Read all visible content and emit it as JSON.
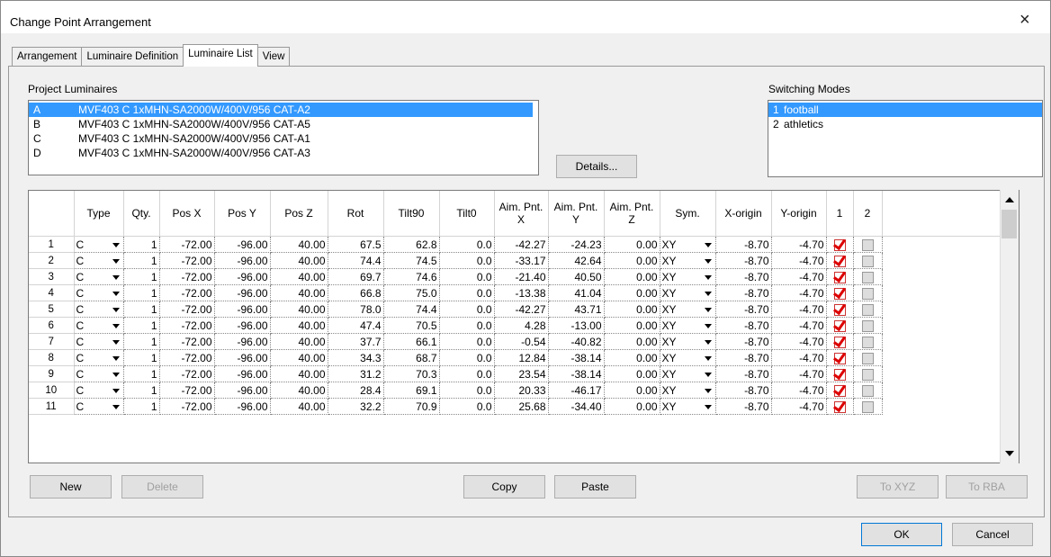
{
  "dialog": {
    "title": "Change Point Arrangement",
    "close": "×"
  },
  "tabs": {
    "items": [
      "Arrangement",
      "Luminaire Definition",
      "Luminaire List",
      "View"
    ],
    "active": 2
  },
  "project_luminaires": {
    "label": "Project Luminaires",
    "selected": 0,
    "items": [
      {
        "id": "A",
        "name": "MVF403 C 1xMHN-SA2000W/400V/956 CAT-A2"
      },
      {
        "id": "B",
        "name": "MVF403 C 1xMHN-SA2000W/400V/956 CAT-A5"
      },
      {
        "id": "C",
        "name": "MVF403 C 1xMHN-SA2000W/400V/956 CAT-A1"
      },
      {
        "id": "D",
        "name": "MVF403 C 1xMHN-SA2000W/400V/956 CAT-A3"
      }
    ]
  },
  "switching_modes": {
    "label": "Switching Modes",
    "selected": 0,
    "items": [
      {
        "id": "1",
        "name": "football"
      },
      {
        "id": "2",
        "name": "athletics"
      }
    ]
  },
  "details_button": "Details...",
  "table": {
    "headers": [
      "Type",
      "Qty.",
      "Pos X",
      "Pos Y",
      "Pos Z",
      "Rot",
      "Tilt90",
      "Tilt0",
      "Aim. Pnt. X",
      "Aim. Pnt. Y",
      "Aim. Pnt. Z",
      "Sym.",
      "X-origin",
      "Y-origin",
      "1",
      "2"
    ],
    "rows": [
      [
        "1",
        "C",
        "1",
        "-72.00",
        "-96.00",
        "40.00",
        "67.5",
        "62.8",
        "0.0",
        "-42.27",
        "-24.23",
        "0.00",
        "XY",
        "-8.70",
        "-4.70",
        true,
        false
      ],
      [
        "2",
        "C",
        "1",
        "-72.00",
        "-96.00",
        "40.00",
        "74.4",
        "74.5",
        "0.0",
        "-33.17",
        "42.64",
        "0.00",
        "XY",
        "-8.70",
        "-4.70",
        true,
        false
      ],
      [
        "3",
        "C",
        "1",
        "-72.00",
        "-96.00",
        "40.00",
        "69.7",
        "74.6",
        "0.0",
        "-21.40",
        "40.50",
        "0.00",
        "XY",
        "-8.70",
        "-4.70",
        true,
        false
      ],
      [
        "4",
        "C",
        "1",
        "-72.00",
        "-96.00",
        "40.00",
        "66.8",
        "75.0",
        "0.0",
        "-13.38",
        "41.04",
        "0.00",
        "XY",
        "-8.70",
        "-4.70",
        true,
        false
      ],
      [
        "5",
        "C",
        "1",
        "-72.00",
        "-96.00",
        "40.00",
        "78.0",
        "74.4",
        "0.0",
        "-42.27",
        "43.71",
        "0.00",
        "XY",
        "-8.70",
        "-4.70",
        true,
        false
      ],
      [
        "6",
        "C",
        "1",
        "-72.00",
        "-96.00",
        "40.00",
        "47.4",
        "70.5",
        "0.0",
        "4.28",
        "-13.00",
        "0.00",
        "XY",
        "-8.70",
        "-4.70",
        true,
        false
      ],
      [
        "7",
        "C",
        "1",
        "-72.00",
        "-96.00",
        "40.00",
        "37.7",
        "66.1",
        "0.0",
        "-0.54",
        "-40.82",
        "0.00",
        "XY",
        "-8.70",
        "-4.70",
        true,
        false
      ],
      [
        "8",
        "C",
        "1",
        "-72.00",
        "-96.00",
        "40.00",
        "34.3",
        "68.7",
        "0.0",
        "12.84",
        "-38.14",
        "0.00",
        "XY",
        "-8.70",
        "-4.70",
        true,
        false
      ],
      [
        "9",
        "C",
        "1",
        "-72.00",
        "-96.00",
        "40.00",
        "31.2",
        "70.3",
        "0.0",
        "23.54",
        "-38.14",
        "0.00",
        "XY",
        "-8.70",
        "-4.70",
        true,
        false
      ],
      [
        "10",
        "C",
        "1",
        "-72.00",
        "-96.00",
        "40.00",
        "28.4",
        "69.1",
        "0.0",
        "20.33",
        "-46.17",
        "0.00",
        "XY",
        "-8.70",
        "-4.70",
        true,
        false
      ],
      [
        "11",
        "C",
        "1",
        "-72.00",
        "-96.00",
        "40.00",
        "32.2",
        "70.9",
        "0.0",
        "25.68",
        "-34.40",
        "0.00",
        "XY",
        "-8.70",
        "-4.70",
        true,
        false
      ]
    ]
  },
  "buttons": {
    "new": "New",
    "delete": "Delete",
    "copy": "Copy",
    "paste": "Paste",
    "to_xyz": "To XYZ",
    "to_rba": "To RBA",
    "ok": "OK",
    "cancel": "Cancel"
  }
}
